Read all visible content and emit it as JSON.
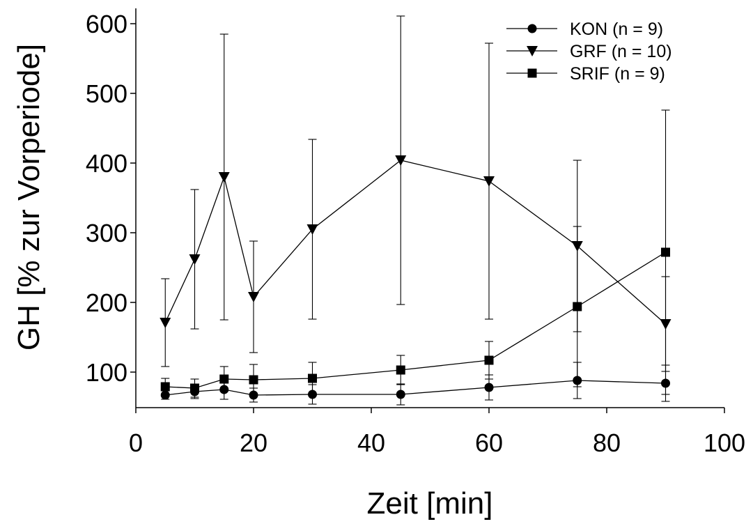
{
  "chart_data": {
    "type": "line",
    "xlabel": "Zeit [min]",
    "ylabel": "GH  [% zur Vorperiode]",
    "xlim": [
      0,
      100
    ],
    "ylim": [
      50,
      620
    ],
    "x_ticks": [
      0,
      20,
      40,
      60,
      80,
      100
    ],
    "y_ticks": [
      100,
      200,
      300,
      400,
      500,
      600
    ],
    "x_tick_labels": [
      "0",
      "20",
      "40",
      "60",
      "80",
      "100"
    ],
    "y_tick_labels": [
      "100",
      "200",
      "300",
      "400",
      "500",
      "600"
    ],
    "grid": false,
    "legend_position": "top-right",
    "series": [
      {
        "name": "KON  (n = 9)",
        "marker": "circle",
        "x": [
          5,
          10,
          15,
          20,
          30,
          45,
          60,
          75,
          90
        ],
        "y": [
          67,
          72,
          75,
          67,
          68,
          68,
          78,
          88,
          84
        ],
        "err": [
          6,
          10,
          14,
          10,
          14,
          15,
          18,
          26,
          26
        ]
      },
      {
        "name": "GRF  (n = 10)",
        "marker": "triangle-down",
        "x": [
          5,
          10,
          15,
          20,
          30,
          45,
          60,
          75,
          90
        ],
        "y": [
          171,
          262,
          380,
          208,
          305,
          404,
          374,
          281,
          169
        ],
        "err": [
          63,
          100,
          205,
          80,
          129,
          207,
          198,
          123,
          68
        ]
      },
      {
        "name": "SRIF (n = 9)",
        "marker": "square",
        "x": [
          5,
          10,
          15,
          20,
          30,
          45,
          60,
          75,
          90
        ],
        "y": [
          79,
          77,
          90,
          89,
          91,
          103,
          117,
          194,
          272
        ],
        "err": [
          12,
          13,
          18,
          22,
          23,
          21,
          27,
          115,
          204
        ]
      }
    ]
  }
}
